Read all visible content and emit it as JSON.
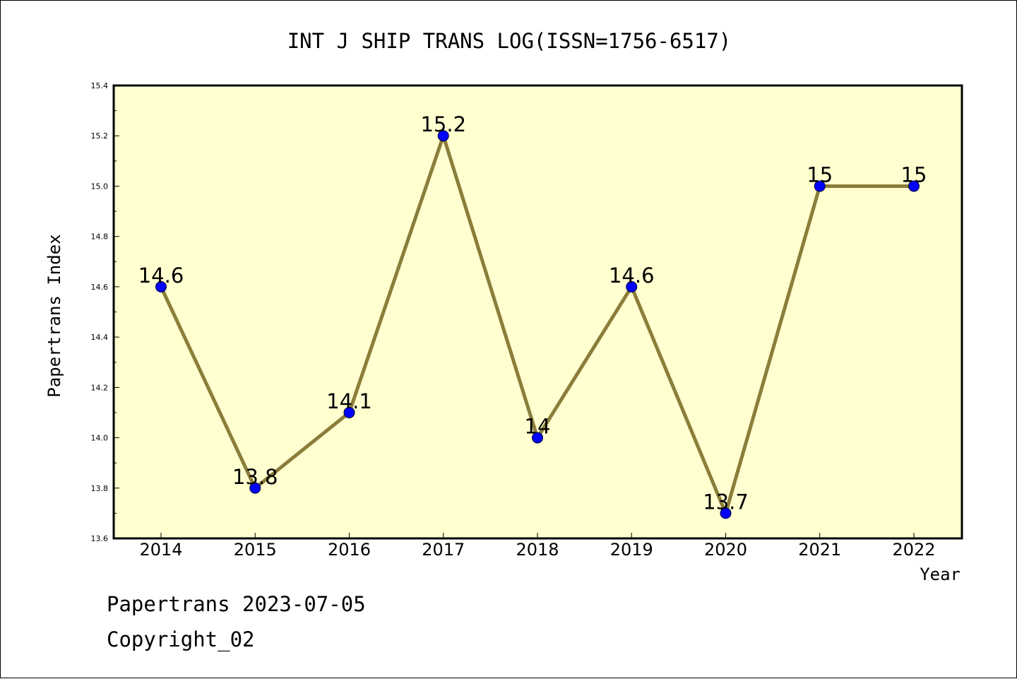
{
  "chart_data": {
    "type": "line",
    "title": "INT J SHIP TRANS LOG(ISSN=1756-6517)",
    "xlabel": "Year",
    "ylabel": "Papertrans Index",
    "categories": [
      "2014",
      "2015",
      "2016",
      "2017",
      "2018",
      "2019",
      "2020",
      "2021",
      "2022"
    ],
    "series": [
      {
        "values": [
          14.6,
          13.8,
          14.1,
          15.2,
          14.0,
          14.6,
          13.7,
          15.0,
          15.0
        ],
        "data_labels": [
          "14.6",
          "13.8",
          "14.1",
          "15.2",
          "14",
          "14.6",
          "13.7",
          "15",
          "15"
        ]
      }
    ],
    "ylim": [
      13.6,
      15.4
    ],
    "yticks": [
      "13.6",
      "13.8",
      "14.0",
      "14.2",
      "14.4",
      "14.6",
      "14.8",
      "15.0",
      "15.2",
      "15.4"
    ],
    "grid": false,
    "colors": {
      "plot_background": "#ffffd0",
      "line": "#8b7d3a",
      "marker": "#0000ff"
    }
  },
  "footer": {
    "line1": "Papertrans 2023-07-05",
    "line2": "Copyright_02"
  }
}
